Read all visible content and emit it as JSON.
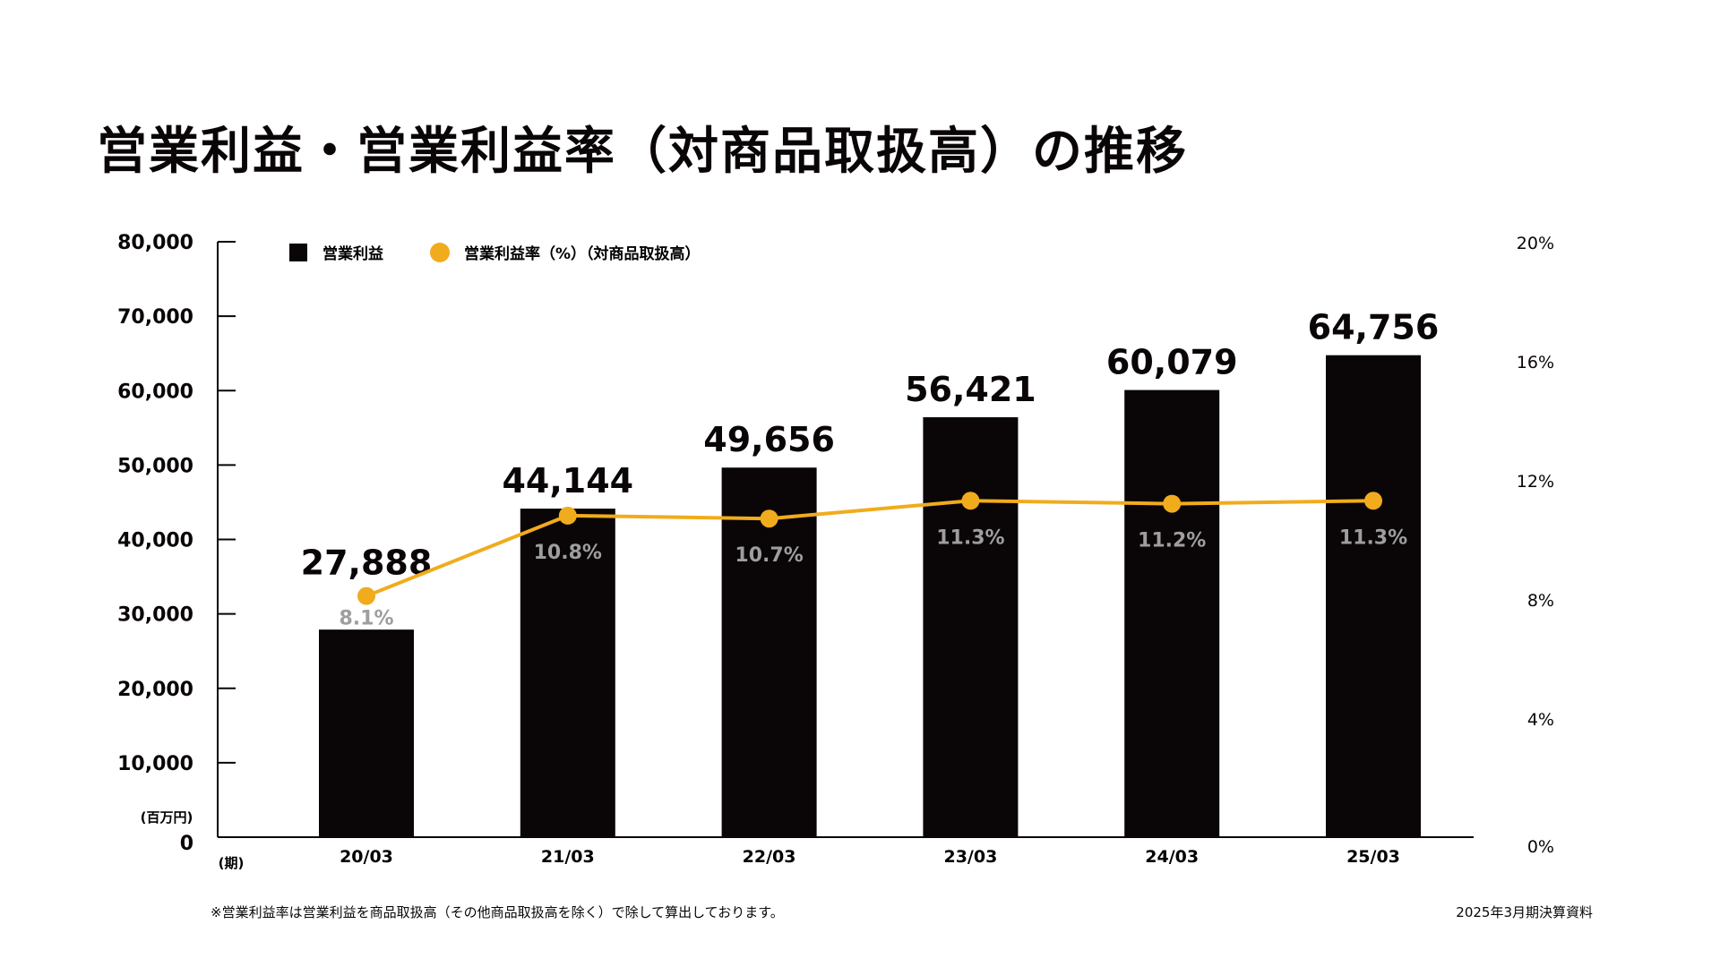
{
  "title": "営業利益・営業利益率（対商品取扱高）の推移",
  "footnote": "※営業利益率は営業利益を商品取扱高（その他商品取扱高を除く）で除して算出しております。",
  "source": "2025年3月期決算資料",
  "colors": {
    "bar": "#0a0506",
    "line": "#f0ac1d",
    "rate_label": "#9e9e9e"
  },
  "chart_data": {
    "type": "bar",
    "title": "営業利益・営業利益率（対商品取扱高）の推移",
    "categories": [
      "20/03",
      "21/03",
      "22/03",
      "23/03",
      "24/03",
      "25/03"
    ],
    "xlabel": "(期)",
    "ylabel": "(百万円)",
    "ylim": [
      0,
      80000
    ],
    "y_ticks": [
      "0",
      "10,000",
      "20,000",
      "30,000",
      "40,000",
      "50,000",
      "60,000",
      "70,000",
      "80,000"
    ],
    "y2lim": [
      0,
      20
    ],
    "y2_ticks": [
      "0%",
      "4%",
      "8%",
      "12%",
      "16%",
      "20%"
    ],
    "grid": false,
    "legend": {
      "placement": "top-left",
      "entries": [
        "営業利益",
        "営業利益率（%）（対商品取扱高）"
      ]
    },
    "series": [
      {
        "name": "営業利益",
        "type": "bar",
        "axis": "left",
        "values": [
          27888,
          44144,
          49656,
          56421,
          60079,
          64756
        ],
        "labels": [
          "27,888",
          "44,144",
          "49,656",
          "56,421",
          "60,079",
          "64,756"
        ]
      },
      {
        "name": "営業利益率（%）（対商品取扱高）",
        "type": "line",
        "axis": "right",
        "values": [
          8.1,
          10.8,
          10.7,
          11.3,
          11.2,
          11.3
        ],
        "labels": [
          "8.1%",
          "10.8%",
          "10.7%",
          "11.3%",
          "11.2%",
          "11.3%"
        ]
      }
    ]
  }
}
